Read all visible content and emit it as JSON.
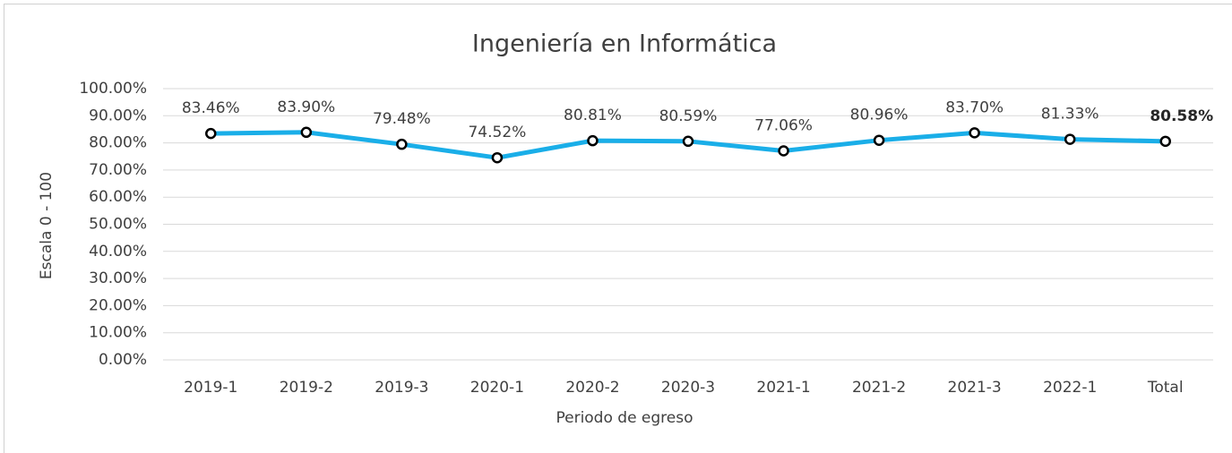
{
  "chart_data": {
    "type": "line",
    "title": "Ingeniería en Informática",
    "x_label": "Periodo de egreso",
    "y_label": "Escala 0 - 100",
    "categories": [
      "2019-1",
      "2019-2",
      "2019-3",
      "2020-1",
      "2020-2",
      "2020-3",
      "2021-1",
      "2021-2",
      "2021-3",
      "2022-1",
      "Total"
    ],
    "series": [
      {
        "name": "Escala 0 - 100",
        "color": "#1aaee8",
        "values": [
          83.46,
          83.9,
          79.48,
          74.52,
          80.81,
          80.59,
          77.06,
          80.96,
          83.7,
          81.33,
          80.58
        ],
        "value_labels": [
          "83.46%",
          "83.90%",
          "79.48%",
          "74.52%",
          "80.81%",
          "80.59%",
          "77.06%",
          "80.96%",
          "83.70%",
          "81.33%",
          "80.58%"
        ]
      }
    ],
    "ylim": [
      0,
      100
    ],
    "yticks": [
      {
        "value": 0,
        "label": "0.00%"
      },
      {
        "value": 10,
        "label": "10.00%"
      },
      {
        "value": 20,
        "label": "20.00%"
      },
      {
        "value": 30,
        "label": "30.00%"
      },
      {
        "value": 40,
        "label": "40.00%"
      },
      {
        "value": 50,
        "label": "50.00%"
      },
      {
        "value": 60,
        "label": "60.00%"
      },
      {
        "value": 70,
        "label": "70.00%"
      },
      {
        "value": 80,
        "label": "80.00%"
      },
      {
        "value": 90,
        "label": "90.00%"
      },
      {
        "value": 100,
        "label": "100.00%"
      }
    ],
    "grid": true
  }
}
